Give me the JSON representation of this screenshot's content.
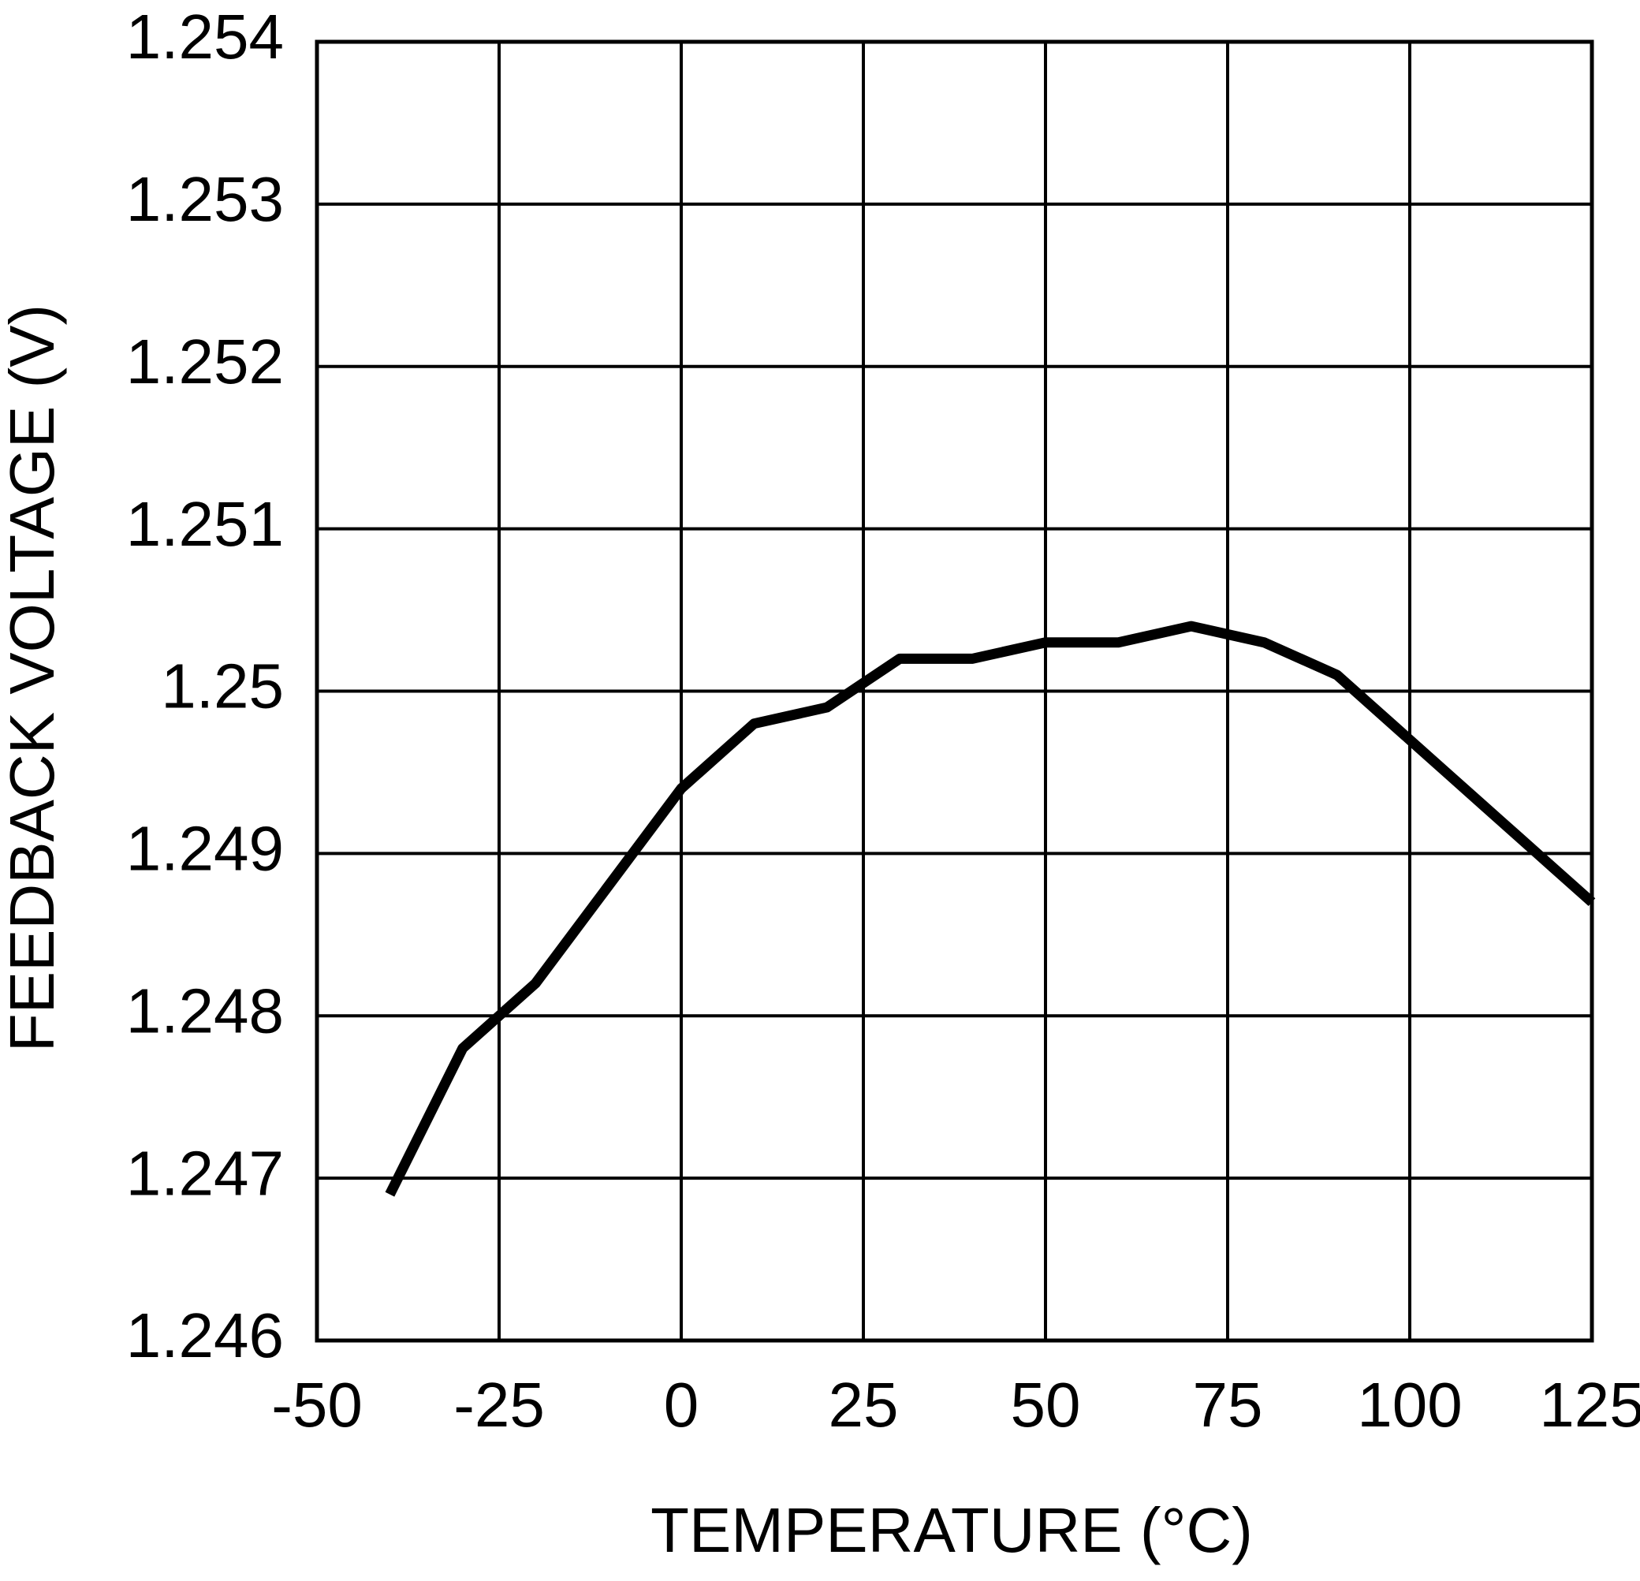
{
  "chart_data": {
    "type": "line",
    "x_label": "TEMPERATURE (°C)",
    "y_label": "FEEDBACK VOLTAGE (V)",
    "x": [
      -40,
      -30,
      -20,
      -10,
      0,
      10,
      20,
      30,
      40,
      50,
      60,
      70,
      80,
      90,
      100,
      105,
      110,
      115,
      120,
      125
    ],
    "values": [
      1.2469,
      1.2478,
      1.2482,
      1.2488,
      1.2494,
      1.2498,
      1.2499,
      1.2502,
      1.2502,
      1.2503,
      1.2503,
      1.2504,
      1.2503,
      1.2501,
      1.2497,
      1.2495,
      1.2493,
      1.2491,
      1.2489,
      1.2487
    ],
    "color": "#000000",
    "xlim": [
      -50,
      125
    ],
    "xticks": [
      -50,
      -25,
      0,
      25,
      50,
      75,
      100,
      125
    ],
    "ylim": [
      1.246,
      1.254
    ],
    "yticks": [
      1.246,
      1.247,
      1.248,
      1.249,
      1.25,
      1.251,
      1.252,
      1.253,
      1.254
    ],
    "grid": true
  }
}
